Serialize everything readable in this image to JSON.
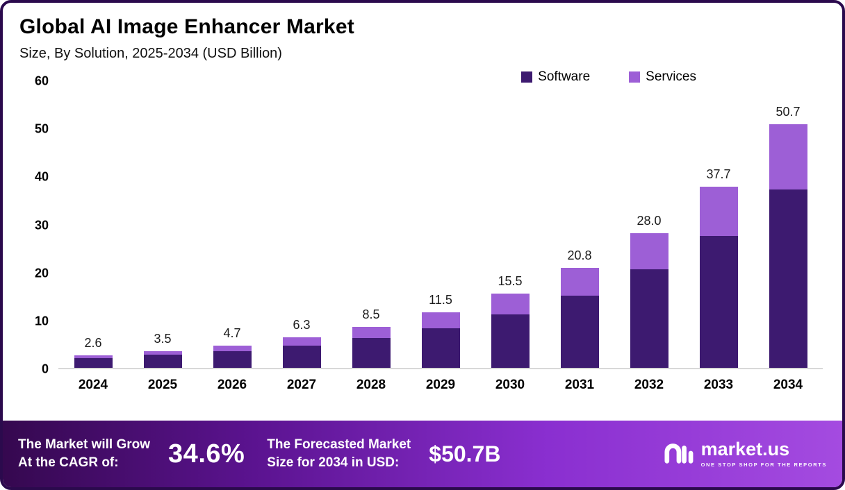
{
  "frame": {
    "border_color": "#2b0a4d"
  },
  "header": {
    "title": "Global AI Image Enhancer Market",
    "subtitle": "Size, By Solution, 2025-2034 (USD Billion)"
  },
  "chart_data": {
    "type": "bar",
    "stacked": true,
    "title": "Global AI Image Enhancer Market Size, By Solution, 2025-2034 (USD Billion)",
    "categories": [
      "2024",
      "2025",
      "2026",
      "2027",
      "2028",
      "2029",
      "2030",
      "2031",
      "2032",
      "2033",
      "2034"
    ],
    "series": [
      {
        "name": "Software",
        "color": "#3d1a70",
        "values": [
          2.0,
          2.7,
          3.5,
          4.7,
          6.2,
          8.3,
          11.2,
          15.0,
          20.5,
          27.5,
          37.2
        ]
      },
      {
        "name": "Services",
        "color": "#9d5fd6",
        "values": [
          0.6,
          0.8,
          1.2,
          1.6,
          2.3,
          3.2,
          4.3,
          5.8,
          7.5,
          10.2,
          13.5
        ]
      }
    ],
    "totals": [
      2.6,
      3.5,
      4.7,
      6.3,
      8.5,
      11.5,
      15.5,
      20.8,
      28.0,
      37.7,
      50.7
    ],
    "total_labels": [
      "2.6",
      "3.5",
      "4.7",
      "6.3",
      "8.5",
      "11.5",
      "15.5",
      "20.8",
      "28.0",
      "37.7",
      "50.7"
    ],
    "xlabel": "",
    "ylabel": "",
    "ylim": [
      0,
      60
    ],
    "yticks": [
      0,
      10,
      20,
      30,
      40,
      50,
      60
    ],
    "grid": false,
    "legend_position": "top-right"
  },
  "footer": {
    "cagr_label_line1": "The Market will Grow",
    "cagr_label_line2": "At the CAGR of:",
    "cagr_value": "34.6%",
    "forecast_label_line1": "The Forecasted Market",
    "forecast_label_line2": "Size for 2034 in USD:",
    "forecast_value": "$50.7B",
    "brand": {
      "name": "market.us",
      "tagline": "ONE STOP SHOP FOR THE REPORTS"
    }
  }
}
